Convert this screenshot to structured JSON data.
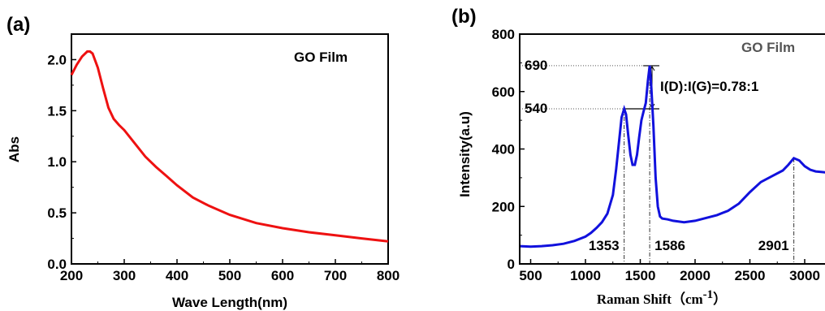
{
  "chart_data": [
    {
      "type": "line",
      "panel_label": "(a)",
      "legend_text": "GO Film",
      "xlabel": "Wave Length(nm)",
      "ylabel": "Abs",
      "xlim": [
        200,
        800
      ],
      "ylim": [
        0.0,
        2.25
      ],
      "xticks": [
        200,
        300,
        400,
        500,
        600,
        700,
        800
      ],
      "yticks": [
        "0.0",
        "0.5",
        "1.0",
        "1.5",
        "2.0"
      ],
      "line_color": "#ee1111",
      "series": [
        {
          "x": [
            200,
            210,
            220,
            230,
            235,
            240,
            250,
            260,
            270,
            280,
            290,
            300,
            320,
            340,
            360,
            380,
            400,
            430,
            460,
            500,
            550,
            600,
            650,
            700,
            750,
            800
          ],
          "y": [
            1.85,
            1.95,
            2.03,
            2.08,
            2.08,
            2.06,
            1.92,
            1.72,
            1.53,
            1.42,
            1.36,
            1.31,
            1.18,
            1.05,
            0.95,
            0.86,
            0.77,
            0.65,
            0.57,
            0.48,
            0.4,
            0.35,
            0.31,
            0.28,
            0.25,
            0.22
          ]
        }
      ]
    },
    {
      "type": "line",
      "panel_label": "(b)",
      "legend_text": "GO Film",
      "xlabel_main": "Raman Shift（cm",
      "xlabel_sup": "-1",
      "xlabel_close": "）",
      "ylabel": "Intensity(a.u)",
      "xlim": [
        400,
        3200
      ],
      "ylim": [
        0,
        800
      ],
      "xticks": [
        500,
        1000,
        1500,
        2000,
        2500,
        3000
      ],
      "yticks": [
        0,
        200,
        400,
        600,
        800
      ],
      "line_color": "#1111dd",
      "peaks": [
        {
          "label": "1353",
          "x": 1353
        },
        {
          "label": "1586",
          "x": 1586
        },
        {
          "label": "2901",
          "x": 2901
        }
      ],
      "levels": [
        {
          "label": "690",
          "y": 690
        },
        {
          "label": "540",
          "y": 540
        }
      ],
      "ratio_text": "I(D):I(G)=0.78:1",
      "series": [
        {
          "x": [
            400,
            500,
            600,
            700,
            800,
            900,
            1000,
            1050,
            1100,
            1150,
            1200,
            1250,
            1280,
            1310,
            1330,
            1353,
            1370,
            1390,
            1410,
            1430,
            1450,
            1470,
            1490,
            1510,
            1530,
            1550,
            1570,
            1586,
            1600,
            1620,
            1640,
            1660,
            1680,
            1700,
            1750,
            1800,
            1900,
            2000,
            2100,
            2200,
            2300,
            2400,
            2500,
            2600,
            2700,
            2800,
            2850,
            2901,
            2950,
            3000,
            3050,
            3100,
            3150,
            3200
          ],
          "y": [
            62,
            60,
            62,
            65,
            70,
            80,
            95,
            108,
            125,
            145,
            175,
            240,
            330,
            440,
            510,
            540,
            520,
            450,
            380,
            345,
            345,
            380,
            440,
            500,
            530,
            560,
            640,
            690,
            620,
            480,
            300,
            200,
            165,
            158,
            155,
            150,
            145,
            150,
            160,
            170,
            185,
            210,
            250,
            285,
            305,
            325,
            345,
            368,
            360,
            340,
            328,
            322,
            320,
            318
          ]
        }
      ]
    }
  ]
}
